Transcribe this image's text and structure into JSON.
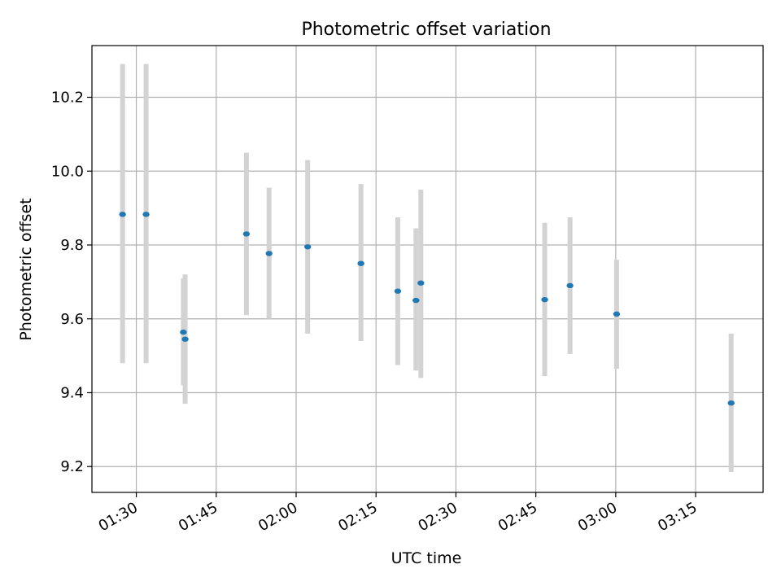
{
  "chart_data": {
    "type": "scatter",
    "title": "Photometric offset variation",
    "xlabel": "UTC time",
    "ylabel": "Photometric offset",
    "xlim": [
      "01:21:40",
      "03:27:40"
    ],
    "ylim": [
      9.13,
      10.34
    ],
    "x_ticks": [
      "01:30",
      "01:45",
      "02:00",
      "02:15",
      "02:30",
      "02:45",
      "03:00",
      "03:15"
    ],
    "y_ticks": [
      "9.2",
      "9.4",
      "9.6",
      "9.8",
      "10.0",
      "10.2"
    ],
    "grid": true,
    "point_color": "#1f77b4",
    "errorbar_color": "#d3d3d3",
    "series": [
      {
        "points": [
          {
            "x": "01:27:25",
            "y": 9.883,
            "low": 9.48,
            "high": 10.29
          },
          {
            "x": "01:31:50",
            "y": 9.883,
            "low": 9.48,
            "high": 10.29
          },
          {
            "x": "01:38:50",
            "y": 9.564,
            "low": 9.42,
            "high": 9.71
          },
          {
            "x": "01:39:10",
            "y": 9.545,
            "low": 9.37,
            "high": 9.72
          },
          {
            "x": "01:50:40",
            "y": 9.83,
            "low": 9.61,
            "high": 10.05
          },
          {
            "x": "01:54:55",
            "y": 9.777,
            "low": 9.6,
            "high": 9.955
          },
          {
            "x": "02:02:10",
            "y": 9.795,
            "low": 9.56,
            "high": 10.03
          },
          {
            "x": "02:12:10",
            "y": 9.75,
            "low": 9.54,
            "high": 9.965
          },
          {
            "x": "02:19:05",
            "y": 9.675,
            "low": 9.475,
            "high": 9.875
          },
          {
            "x": "02:22:30",
            "y": 9.65,
            "low": 9.46,
            "high": 9.845
          },
          {
            "x": "02:23:25",
            "y": 9.697,
            "low": 9.44,
            "high": 9.95
          },
          {
            "x": "02:46:40",
            "y": 9.652,
            "low": 9.445,
            "high": 9.86
          },
          {
            "x": "02:51:25",
            "y": 9.69,
            "low": 9.505,
            "high": 9.875
          },
          {
            "x": "03:00:10",
            "y": 9.613,
            "low": 9.465,
            "high": 9.76
          },
          {
            "x": "03:21:40",
            "y": 9.372,
            "low": 9.185,
            "high": 9.56
          }
        ]
      }
    ]
  }
}
